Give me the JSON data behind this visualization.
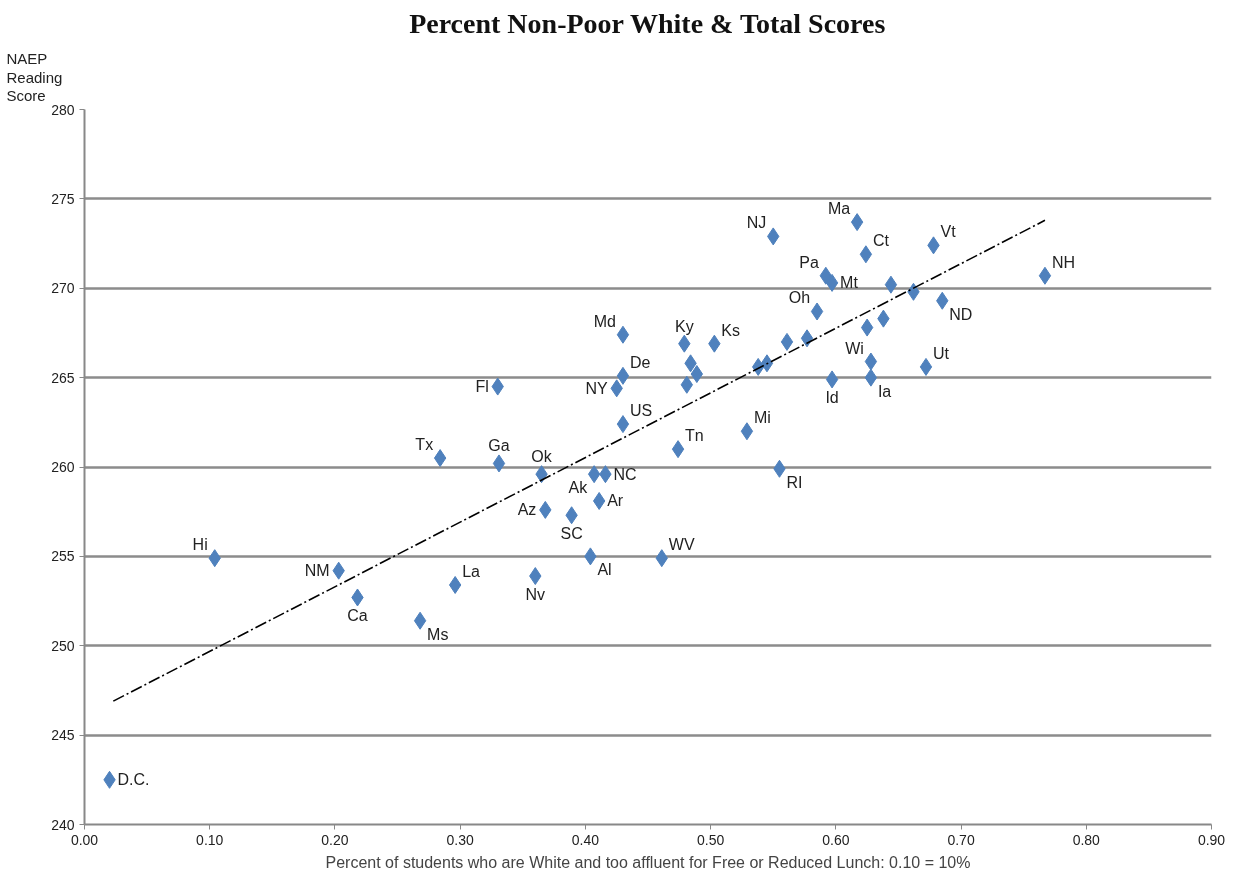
{
  "chart_data": {
    "type": "scatter",
    "title": "Percent Non-Poor White & Total Scores",
    "xlabel": "Percent of students who are White and too affluent for Free or Reduced Lunch: 0.10 = 10%",
    "ylabel": "NAEP\nReading\nScore",
    "xlim": [
      0,
      0.9
    ],
    "ylim": [
      240,
      280
    ],
    "xticks": [
      {
        "value": 0,
        "label": "0.00"
      },
      {
        "value": 0.1,
        "label": "0.10"
      },
      {
        "value": 0.2,
        "label": "0.20"
      },
      {
        "value": 0.3,
        "label": "0.30"
      },
      {
        "value": 0.4,
        "label": "0.40"
      },
      {
        "value": 0.5,
        "label": "0.50"
      },
      {
        "value": 0.6,
        "label": "0.60"
      },
      {
        "value": 0.7,
        "label": "0.70"
      },
      {
        "value": 0.8,
        "label": "0.80"
      },
      {
        "value": 0.9,
        "label": "0.90"
      }
    ],
    "yticks": [
      240,
      245,
      250,
      255,
      260,
      265,
      270,
      275,
      280
    ],
    "grid": "y",
    "series": [
      {
        "type": "scatter",
        "marker": "diamond",
        "color": "#4f81bd",
        "x": [
          0.02,
          0.104,
          0.203,
          0.218,
          0.268,
          0.296,
          0.284,
          0.331,
          0.33,
          0.365,
          0.368,
          0.389,
          0.36,
          0.404,
          0.407,
          0.416,
          0.411,
          0.43,
          0.425,
          0.43,
          0.43,
          0.461,
          0.474,
          0.479,
          0.484,
          0.489,
          0.481,
          0.503,
          0.529,
          0.555,
          0.538,
          0.545,
          0.561,
          0.577,
          0.585,
          0.597,
          0.55,
          0.617,
          0.624,
          0.592,
          0.597,
          0.644,
          0.662,
          0.625,
          0.638,
          0.685,
          0.628,
          0.628,
          0.672,
          0.678,
          0.767
        ],
        "values": [
          242.5,
          254.9,
          254.2,
          252.7,
          251.4,
          253.4,
          260.5,
          260.2,
          264.5,
          259.6,
          257.6,
          257.3,
          253.9,
          255.0,
          259.6,
          259.6,
          258.1,
          262.4,
          264.4,
          265.1,
          267.4,
          254.9,
          261.0,
          266.9,
          265.8,
          265.2,
          264.6,
          266.9,
          262.0,
          259.9,
          265.6,
          265.8,
          267.0,
          267.2,
          268.7,
          264.9,
          272.9,
          273.7,
          271.9,
          270.7,
          270.3,
          270.2,
          269.8,
          267.8,
          268.3,
          269.3,
          265.9,
          265.0,
          265.6,
          272.4,
          270.7
        ],
        "value_labels": [
          "D.C.",
          "Hi",
          "NM",
          "Ca",
          "Ms",
          "La",
          "Tx",
          "Ga",
          "Fl",
          "Ok",
          "Az",
          "SC",
          "Nv",
          "Al",
          "Ak",
          "NC",
          "Ar",
          "US",
          "NY",
          "De",
          "Md",
          "WV",
          "Tn",
          "Ky",
          null,
          null,
          null,
          "Ks",
          "Mi",
          "RI",
          null,
          null,
          null,
          null,
          "Oh",
          "Id",
          "NJ",
          "Ma",
          "Ct",
          "Pa",
          "Mt",
          null,
          null,
          null,
          null,
          "ND",
          "Wi",
          "Ia",
          "Ut",
          "Vt",
          "NH"
        ]
      },
      {
        "type": "line",
        "color": "#000000",
        "line_style": "dashdot",
        "marker": "none",
        "x": [
          0.023,
          0.767
        ],
        "values": [
          246.9,
          273.8
        ]
      }
    ]
  }
}
